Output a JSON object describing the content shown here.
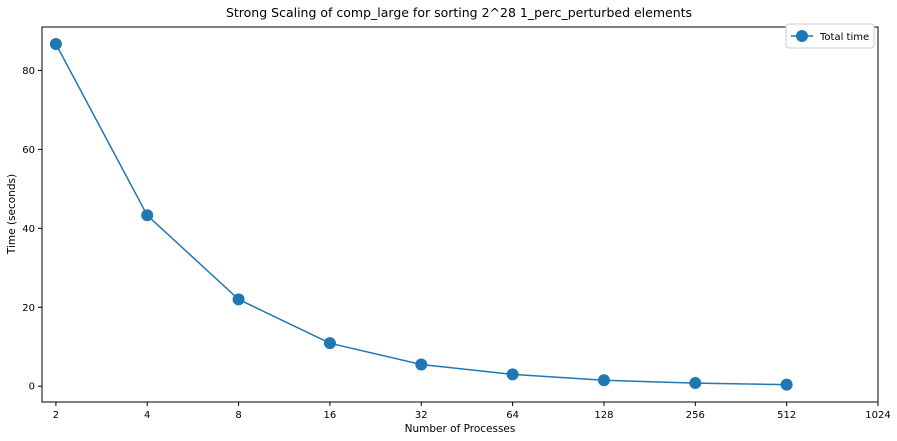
{
  "chart_data": {
    "type": "line",
    "title": "Strong Scaling of comp_large for sorting 2^28 1_perc_perturbed elements",
    "xlabel": "Number of Processes",
    "ylabel": "Time (seconds)",
    "x_scale": "log2",
    "x_ticks": [
      "2",
      "4",
      "8",
      "16",
      "32",
      "64",
      "128",
      "256",
      "512",
      "1024"
    ],
    "y_ticks": [
      "0",
      "20",
      "40",
      "60",
      "80"
    ],
    "xlim": [
      1.8,
      1024
    ],
    "ylim": [
      -4,
      91
    ],
    "grid": false,
    "legend_position": "top-right",
    "series": [
      {
        "name": "Total time",
        "color": "#1f77b4",
        "marker": "circle",
        "x": [
          2,
          4,
          8,
          16,
          32,
          64,
          128,
          256,
          512
        ],
        "values": [
          86.7,
          43.3,
          22.0,
          10.9,
          5.5,
          3.0,
          1.5,
          0.8,
          0.4
        ]
      }
    ]
  }
}
